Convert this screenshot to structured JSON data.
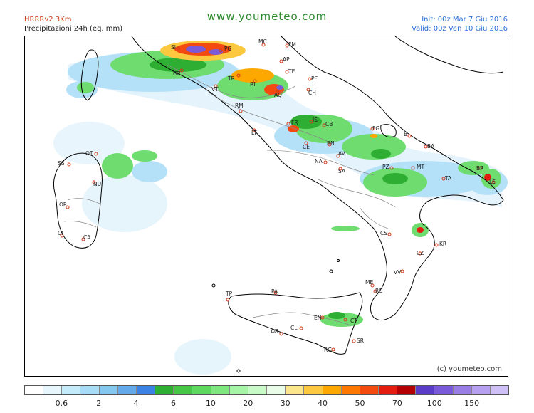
{
  "header": {
    "model": "HRRRv2 3Km",
    "variable": "Precipitazioni 24h (eq. mm)",
    "site": "www.youmeteo.com",
    "init": "Init: 00z Mar  7  Giu 2016",
    "valid": "Valid: 00z Ven  10 Giu 2016"
  },
  "map": {
    "copyright": "(c) youmeteo.com",
    "cities": [
      {
        "id": "si",
        "label": "SI"
      },
      {
        "id": "pg",
        "label": "PG"
      },
      {
        "id": "mc",
        "label": "MC"
      },
      {
        "id": "fm",
        "label": "FM"
      },
      {
        "id": "ap",
        "label": "AP"
      },
      {
        "id": "te",
        "label": "TE"
      },
      {
        "id": "pe",
        "label": "PE"
      },
      {
        "id": "gr",
        "label": "GR"
      },
      {
        "id": "vt",
        "label": "VT"
      },
      {
        "id": "tr",
        "label": "TR"
      },
      {
        "id": "ri",
        "label": "RI"
      },
      {
        "id": "aq",
        "label": "AQ"
      },
      {
        "id": "ch",
        "label": "CH"
      },
      {
        "id": "rm",
        "label": "RM"
      },
      {
        "id": "fr",
        "label": "FR"
      },
      {
        "id": "is",
        "label": "IS"
      },
      {
        "id": "cb",
        "label": "CB"
      },
      {
        "id": "lt",
        "label": "LT"
      },
      {
        "id": "fg",
        "label": "FG"
      },
      {
        "id": "bt",
        "label": "BT"
      },
      {
        "id": "ba",
        "label": "BA"
      },
      {
        "id": "ce",
        "label": "CE"
      },
      {
        "id": "bn",
        "label": "BN"
      },
      {
        "id": "av",
        "label": "AV"
      },
      {
        "id": "na",
        "label": "NA"
      },
      {
        "id": "sa",
        "label": "SA"
      },
      {
        "id": "pz",
        "label": "PZ"
      },
      {
        "id": "mt",
        "label": "MT"
      },
      {
        "id": "ta",
        "label": "TA"
      },
      {
        "id": "br",
        "label": "BR"
      },
      {
        "id": "le",
        "label": "LE"
      },
      {
        "id": "ot",
        "label": "OT"
      },
      {
        "id": "ss",
        "label": "SS"
      },
      {
        "id": "nu",
        "label": "NU"
      },
      {
        "id": "or",
        "label": "OR"
      },
      {
        "id": "ci",
        "label": "CI"
      },
      {
        "id": "ca",
        "label": "CA"
      },
      {
        "id": "cs",
        "label": "CS"
      },
      {
        "id": "kr",
        "label": "KR"
      },
      {
        "id": "cz",
        "label": "CZ"
      },
      {
        "id": "vv",
        "label": "VV"
      },
      {
        "id": "me",
        "label": "ME"
      },
      {
        "id": "rc",
        "label": "RC"
      },
      {
        "id": "tp",
        "label": "TP"
      },
      {
        "id": "pa",
        "label": "PA"
      },
      {
        "id": "en",
        "label": "EN"
      },
      {
        "id": "ct",
        "label": "CT"
      },
      {
        "id": "ag",
        "label": "AG"
      },
      {
        "id": "cl",
        "label": "CL"
      },
      {
        "id": "sr",
        "label": "SR"
      },
      {
        "id": "rg",
        "label": "RG"
      }
    ]
  },
  "legend": {
    "colors": [
      "#ffffff",
      "#e6f6fc",
      "#c4ebfa",
      "#a6dcf6",
      "#84c8f0",
      "#64aaea",
      "#3c82e4",
      "#2eae32",
      "#46c846",
      "#5ed85e",
      "#7ee87e",
      "#a6f4a6",
      "#c8fac8",
      "#e8fce8",
      "#fce68c",
      "#fcc840",
      "#fca800",
      "#fc7800",
      "#f44a10",
      "#e41c10",
      "#b40000",
      "#5a3cc8",
      "#7a5ad8",
      "#9a7ee6",
      "#b8a0f0",
      "#cfc0f8"
    ],
    "labels": [
      {
        "text": "0.6",
        "boundary": 2
      },
      {
        "text": "2",
        "boundary": 4
      },
      {
        "text": "4",
        "boundary": 6
      },
      {
        "text": "6",
        "boundary": 8
      },
      {
        "text": "10",
        "boundary": 10
      },
      {
        "text": "20",
        "boundary": 12
      },
      {
        "text": "30",
        "boundary": 14
      },
      {
        "text": "40",
        "boundary": 16
      },
      {
        "text": "50",
        "boundary": 18
      },
      {
        "text": "70",
        "boundary": 20
      },
      {
        "text": "100",
        "boundary": 22
      },
      {
        "text": "150",
        "boundary": 24
      }
    ]
  }
}
